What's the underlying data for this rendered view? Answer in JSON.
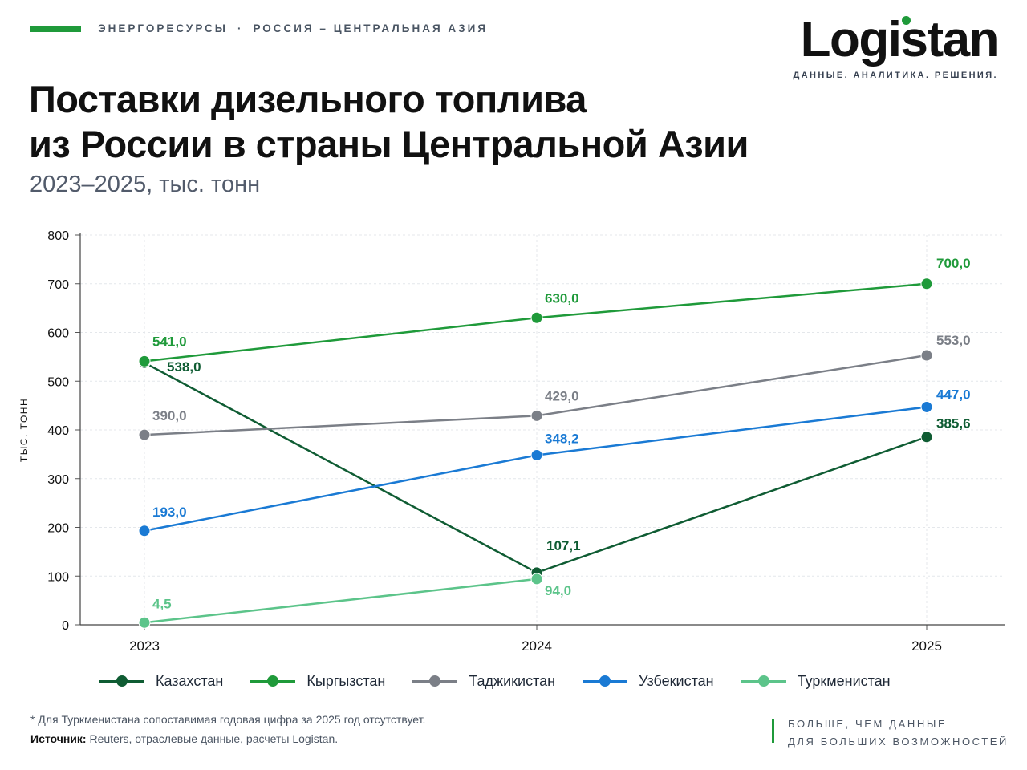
{
  "header": {
    "kicker_topic": "ЭНЕРГОРЕСУРСЫ",
    "kicker_sep": "·",
    "kicker_region": "РОССИЯ – ЦЕНТРАЛЬНАЯ АЗИЯ",
    "accent_color": "#1f9a3a"
  },
  "logo": {
    "wordmark": "Logistan",
    "tagline": "ДАННЫЕ. АНАЛИТИКА. РЕШЕНИЯ."
  },
  "title_line1": "Поставки дизельного топлива",
  "title_line2": "из России в страны Центральной Азии",
  "subtitle": "2023–2025, тыс. тонн",
  "chart_data": {
    "type": "line",
    "ylabel": "ТЫС. ТОНН",
    "ylim": [
      0,
      800
    ],
    "yticks": [
      0,
      100,
      200,
      300,
      400,
      500,
      600,
      700,
      800
    ],
    "categories": [
      "2023",
      "2024",
      "2025"
    ],
    "grid": true,
    "legend_position": "bottom",
    "series": [
      {
        "name": "Казахстан",
        "color": "#0f5c33",
        "values": [
          538.0,
          107.1,
          385.6
        ],
        "labels": [
          "538,0",
          "107,1",
          "385,6"
        ]
      },
      {
        "name": "Кыргызстан",
        "color": "#1f9a3a",
        "values": [
          541.0,
          630.0,
          700.0
        ],
        "labels": [
          "541,0",
          "630,0",
          "700,0"
        ]
      },
      {
        "name": "Таджикистан",
        "color": "#7b7f87",
        "values": [
          390.0,
          429.0,
          553.0
        ],
        "labels": [
          "390,0",
          "429,0",
          "553,0"
        ]
      },
      {
        "name": "Узбекистан",
        "color": "#1a7ad4",
        "values": [
          193.0,
          348.2,
          447.0
        ],
        "labels": [
          "193,0",
          "348,2",
          "447,0"
        ]
      },
      {
        "name": "Туркменистан",
        "color": "#5cc48a",
        "values": [
          4.5,
          94.0,
          null
        ],
        "labels": [
          "4,5",
          "94,0",
          ""
        ]
      }
    ]
  },
  "footer": {
    "footnote": "* Для Туркменистана сопоставимая годовая цифра за 2025 год отсутствует.",
    "source_label": "Источник:",
    "source_text": " Reuters, отраслевые данные, расчеты Logistan.",
    "slogan_line1": "БОЛЬШЕ, ЧЕМ ДАННЫЕ",
    "slogan_line2": "ДЛЯ БОЛЬШИХ ВОЗМОЖНОСТЕЙ"
  }
}
